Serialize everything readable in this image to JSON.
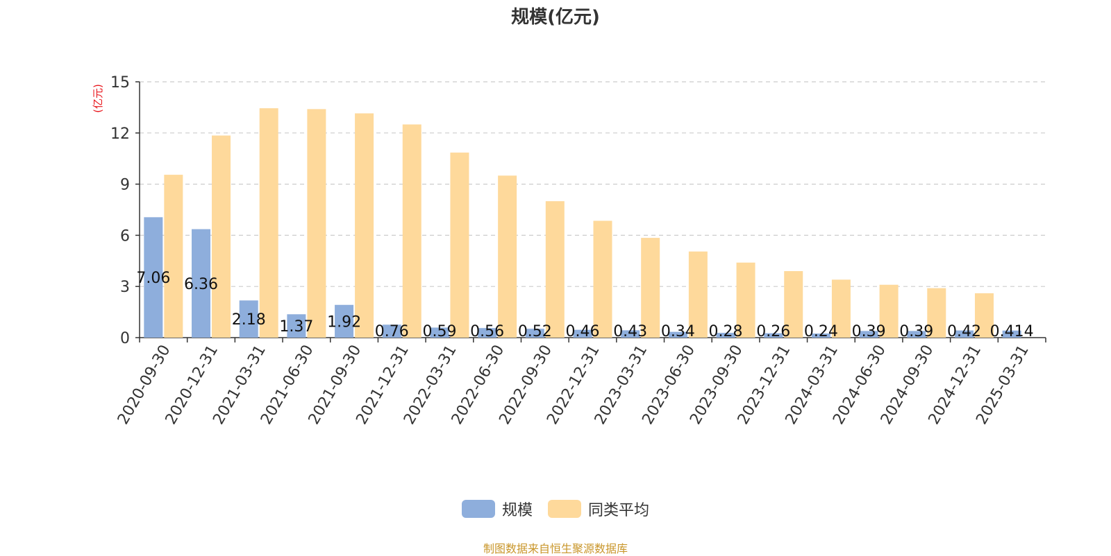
{
  "chart_data": {
    "type": "bar",
    "title": "规模(亿元)",
    "ylabel": "(亿元)",
    "xlabel": "",
    "ylim": [
      0,
      15
    ],
    "yticks": [
      0,
      3,
      6,
      9,
      12,
      15
    ],
    "grid": true,
    "legend_position": "bottom",
    "categories": [
      "2020-09-30",
      "2020-12-31",
      "2021-03-31",
      "2021-06-30",
      "2021-09-30",
      "2021-12-31",
      "2022-03-31",
      "2022-06-30",
      "2022-09-30",
      "2022-12-31",
      "2023-03-31",
      "2023-06-30",
      "2023-09-30",
      "2023-12-31",
      "2024-03-31",
      "2024-06-30",
      "2024-09-30",
      "2024-12-31",
      "2025-03-31"
    ],
    "series": [
      {
        "name": "规模",
        "color": "#8eaedc",
        "values": [
          7.06,
          6.36,
          2.18,
          1.37,
          1.92,
          0.76,
          0.59,
          0.56,
          0.52,
          0.46,
          0.43,
          0.34,
          0.28,
          0.26,
          0.24,
          0.39,
          0.39,
          0.42,
          0.414
        ],
        "labels": [
          "7.06",
          "6.36",
          "2.18",
          "1.37",
          "1.92",
          "0.76",
          "0.59",
          "0.56",
          "0.52",
          "0.46",
          "0.43",
          "0.34",
          "0.28",
          "0.26",
          "0.24",
          "0.39",
          "0.39",
          "0.42",
          "0.414"
        ]
      },
      {
        "name": "同类平均",
        "color": "#fed99b",
        "values": [
          9.55,
          11.85,
          13.45,
          13.4,
          13.15,
          12.5,
          10.85,
          9.5,
          8.0,
          6.85,
          5.85,
          5.05,
          4.4,
          3.9,
          3.4,
          3.1,
          2.9,
          2.6,
          null
        ]
      }
    ]
  },
  "footer": {
    "source": "制图数据来自恒生聚源数据库"
  },
  "colors": {
    "axis_label": "#e8151b",
    "grid": "#cccccc",
    "text": "#333333"
  }
}
